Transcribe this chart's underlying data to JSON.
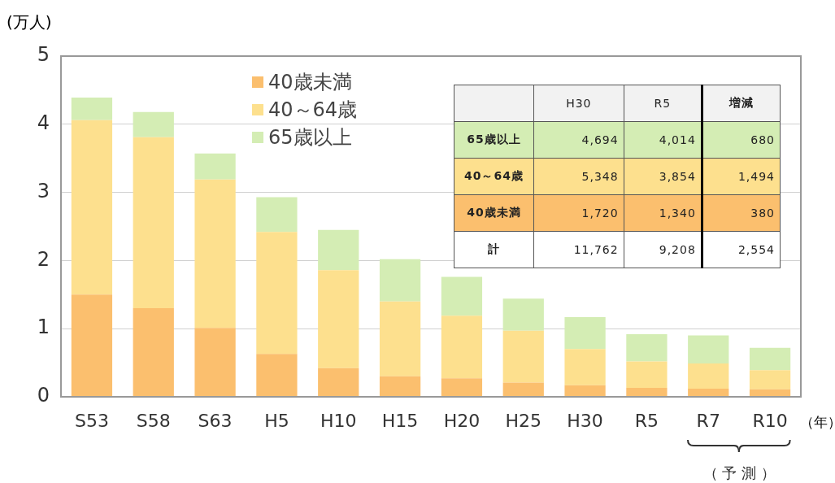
{
  "chart_data": {
    "type": "bar",
    "stacked": true,
    "ylabel": "(万人)",
    "xlabel": "（年）",
    "categories": [
      "S53",
      "S58",
      "S63",
      "H5",
      "H10",
      "H15",
      "H20",
      "H25",
      "H30",
      "R5",
      "R7",
      "R10"
    ],
    "ylim": [
      0,
      5
    ],
    "yticks": [
      0,
      1,
      2,
      3,
      4,
      5
    ],
    "grid": "y",
    "legend": "top left",
    "series": [
      {
        "name": "40歳未満",
        "color": "#fbbf6e",
        "values": [
          1.5,
          1.3,
          1.01,
          0.63,
          0.42,
          0.3,
          0.27,
          0.21,
          0.17,
          0.13,
          0.12,
          0.11
        ]
      },
      {
        "name": "40～64歳",
        "color": "#fde08e",
        "values": [
          2.56,
          2.51,
          2.18,
          1.79,
          1.44,
          1.1,
          0.92,
          0.76,
          0.53,
          0.39,
          0.37,
          0.28
        ]
      },
      {
        "name": "65歳以上",
        "color": "#d4edb4",
        "values": [
          0.33,
          0.37,
          0.38,
          0.51,
          0.59,
          0.62,
          0.57,
          0.47,
          0.47,
          0.4,
          0.41,
          0.33
        ]
      }
    ],
    "annotations": [
      "H30",
      "R5",
      "増減",
      "65歳以上",
      "4,694",
      "4,014",
      "680",
      "40～64歳",
      "5,348",
      "3,854",
      "1,494",
      "40歳未満",
      "1,720",
      "1,340",
      "380",
      "計",
      "11,762",
      "9,208",
      "2,554",
      "（ 予 測 ）"
    ]
  }
}
